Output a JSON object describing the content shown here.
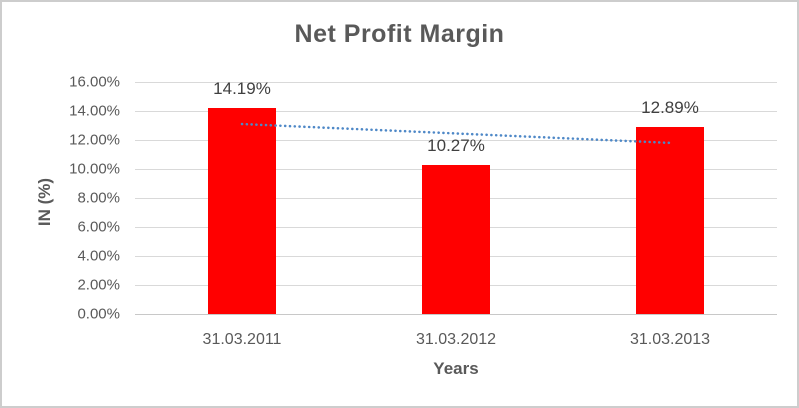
{
  "chart_data": {
    "type": "bar",
    "title": "Net Profit Margin",
    "categories": [
      "31.03.2011",
      "31.03.2012",
      "31.03.2013"
    ],
    "series": [
      {
        "name": "Net Profit Margin",
        "values": [
          14.19,
          10.27,
          12.89
        ]
      }
    ],
    "data_labels": [
      "14.19%",
      "10.27%",
      "12.89%"
    ],
    "xlabel": "Years",
    "ylabel": "IN (%)",
    "ylim": [
      0,
      16
    ],
    "ytick_step": 2,
    "ytick_labels": [
      "0.00%",
      "2.00%",
      "4.00%",
      "6.00%",
      "8.00%",
      "10.00%",
      "12.00%",
      "14.00%",
      "16.00%"
    ],
    "grid": true,
    "legend": false,
    "bar_color": "#FF0000",
    "trendline": {
      "type": "linear",
      "style": "dotted",
      "color": "#4E88C7",
      "y_start": 13.1,
      "y_end": 11.8
    },
    "colors": {
      "title_text": "#595959",
      "axis_text": "#595959",
      "data_label_text": "#404040",
      "gridline": "#D9D9D9",
      "axis_line": "#C8C8C8",
      "frame_border": "#CDCDCD",
      "background": "#FFFFFF"
    }
  }
}
